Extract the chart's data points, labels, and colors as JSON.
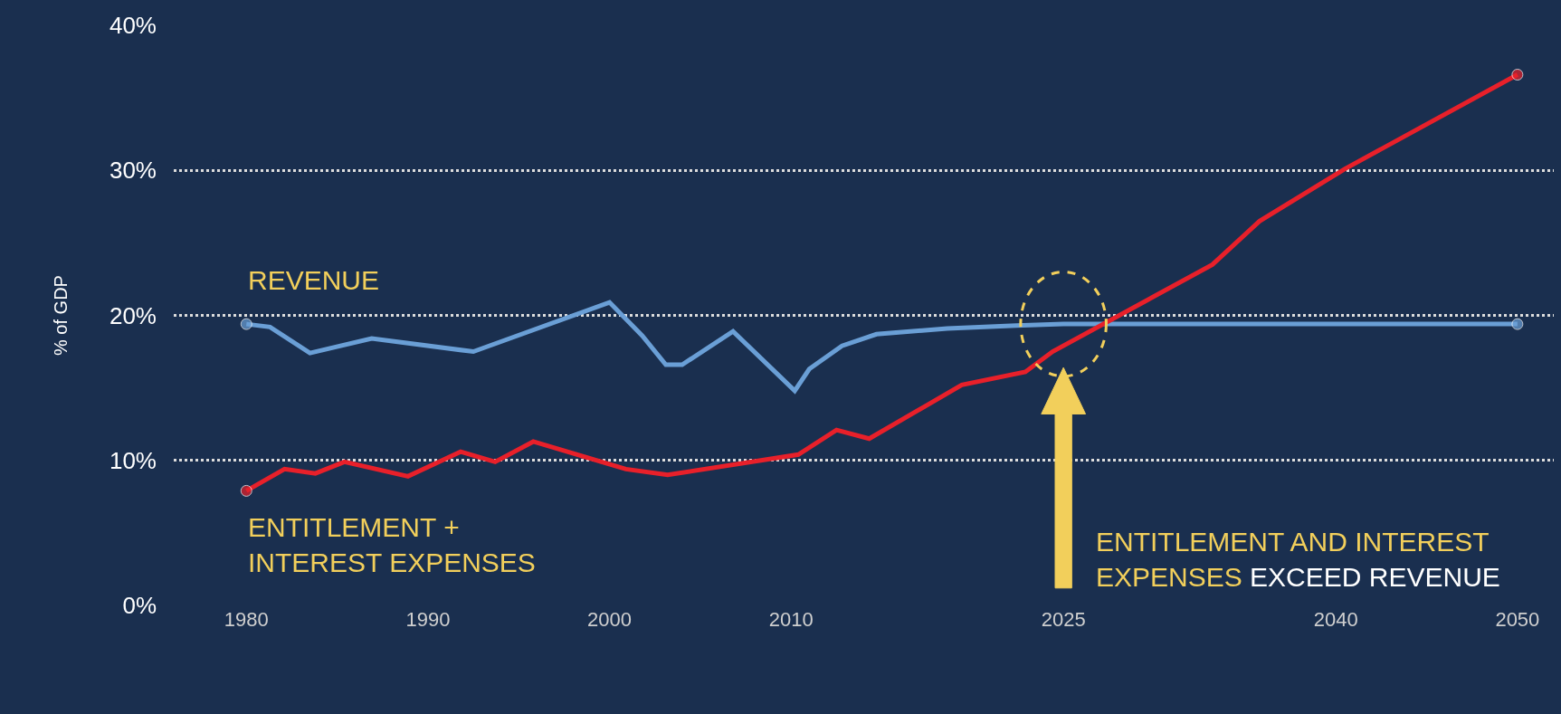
{
  "chart_data": {
    "type": "line",
    "ylabel": "% of GDP",
    "x": [
      1980,
      1981.3,
      1983.5,
      1986.9,
      1992.5,
      2000,
      2001.8,
      2003.1,
      2004,
      2006.8,
      2010.2,
      2011,
      2012.8,
      2014.7,
      2018.6,
      2022.4,
      2025,
      2050
    ],
    "series": [
      {
        "name": "REVENUE",
        "color": "#6a9fd6",
        "values": [
          19.4,
          19.2,
          17.4,
          18.4,
          17.5,
          20.9,
          18.6,
          16.6,
          16.6,
          18.9,
          14.8,
          16.3,
          17.9,
          18.7,
          19.1,
          19.3,
          19.4,
          19.4
        ]
      },
      {
        "name": "ENTITLEMENT +\nINTEREST EXPENSES",
        "color": "#e8202a",
        "x": [
          1980,
          1982.1,
          1983.8,
          1985.4,
          1988.9,
          1991.8,
          1993.7,
          1995.8,
          2000.9,
          2003.2,
          2010.4,
          2012.5,
          2014.3,
          2019.4,
          2022.9,
          2024.4,
          2033.2,
          2035.8,
          2040.5,
          2050
        ],
        "values": [
          7.9,
          9.4,
          9.1,
          9.9,
          8.9,
          10.6,
          9.9,
          11.3,
          9.4,
          9.0,
          10.4,
          12.1,
          11.5,
          15.2,
          16.1,
          17.5,
          23.5,
          26.5,
          30.1,
          36.6
        ]
      }
    ],
    "annotations": [
      "ENTITLEMENT AND INTEREST EXPENSES EXCEED REVENUE"
    ],
    "xlim": [
      1976,
      2052
    ],
    "xticks": [
      1980,
      1990,
      2000,
      2010,
      2025,
      2040,
      2050
    ],
    "ylim": [
      0,
      40
    ],
    "yticks": [
      {
        "value": 0,
        "label": "0%"
      },
      {
        "value": 10,
        "label": "10%"
      },
      {
        "value": 20,
        "label": "20%"
      },
      {
        "value": 30,
        "label": "30%"
      },
      {
        "value": 40,
        "label": "40%"
      }
    ],
    "grid": "y",
    "line_style": "solid"
  }
}
